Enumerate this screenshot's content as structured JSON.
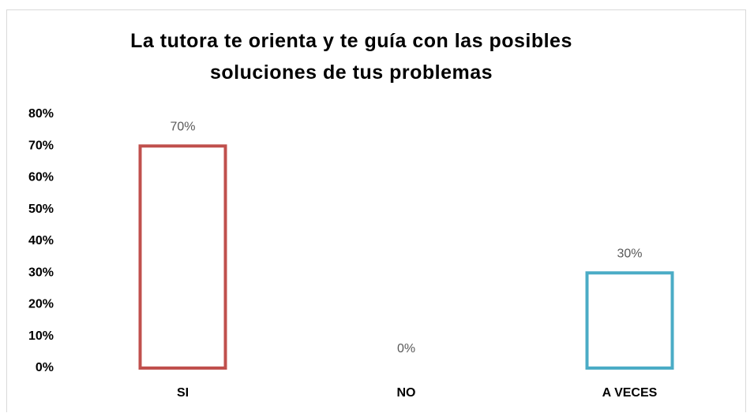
{
  "chart_data": {
    "type": "bar",
    "title": "La tutora te orienta y te guía con las posibles soluciones de tus problemas",
    "categories": [
      "SI",
      "NO",
      "A VECES"
    ],
    "values": [
      70,
      0,
      30
    ],
    "value_labels": [
      "70%",
      "0%",
      "30%"
    ],
    "colors": [
      "#c0504d",
      "#9bbb59",
      "#4bacc6"
    ],
    "ylim": [
      0,
      80
    ],
    "yticks": [
      {
        "value": 0,
        "label": "0%"
      },
      {
        "value": 10,
        "label": "10%"
      },
      {
        "value": 20,
        "label": "20%"
      },
      {
        "value": 30,
        "label": "30%"
      },
      {
        "value": 40,
        "label": "40%"
      },
      {
        "value": 50,
        "label": "50%"
      },
      {
        "value": 60,
        "label": "60%"
      },
      {
        "value": 70,
        "label": "70%"
      },
      {
        "value": 80,
        "label": "80%"
      }
    ],
    "grid": false
  }
}
